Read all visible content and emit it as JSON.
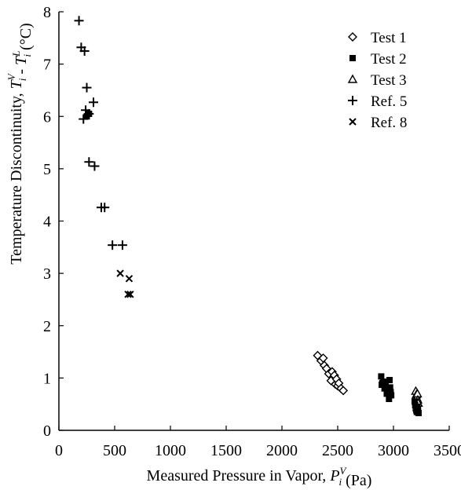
{
  "chart_data": {
    "type": "scatter",
    "xlabel": "Measured Pressure in Vapor, P_i^V (Pa)",
    "ylabel": "Temperature Discontinuity, T_i^V - T_i^L (°C)",
    "xlim": [
      0,
      3500
    ],
    "ylim": [
      0,
      8
    ],
    "xticks": [
      0,
      500,
      1000,
      1500,
      2000,
      2500,
      3000,
      3500
    ],
    "yticks": [
      0,
      1,
      2,
      3,
      4,
      5,
      6,
      7,
      8
    ],
    "grid": false,
    "legend_position": "top-right",
    "series": [
      {
        "name": "Test 1",
        "marker": "diamond-open",
        "points": [
          [
            2320,
            1.43
          ],
          [
            2350,
            1.33
          ],
          [
            2370,
            1.38
          ],
          [
            2380,
            1.24
          ],
          [
            2400,
            1.18
          ],
          [
            2420,
            1.08
          ],
          [
            2440,
            0.95
          ],
          [
            2450,
            1.12
          ],
          [
            2470,
            1.05
          ],
          [
            2480,
            0.88
          ],
          [
            2490,
            0.98
          ],
          [
            2500,
            0.85
          ],
          [
            2510,
            0.9
          ],
          [
            2530,
            0.8
          ],
          [
            2550,
            0.76
          ]
        ]
      },
      {
        "name": "Test 2",
        "marker": "square-filled",
        "points": [
          [
            2890,
            1.03
          ],
          [
            2895,
            0.87
          ],
          [
            2900,
            0.9
          ],
          [
            2910,
            0.93
          ],
          [
            2920,
            0.8
          ],
          [
            2930,
            0.85
          ],
          [
            2940,
            0.7
          ],
          [
            2950,
            0.76
          ],
          [
            2960,
            0.6
          ],
          [
            2965,
            0.96
          ],
          [
            2970,
            0.82
          ],
          [
            2975,
            0.73
          ],
          [
            2980,
            0.67
          ]
        ]
      },
      {
        "name": "Test 3",
        "marker": "triangle-open",
        "points": [
          [
            3200,
            0.75
          ],
          [
            3205,
            0.68
          ],
          [
            3210,
            0.62
          ],
          [
            3215,
            0.7
          ],
          [
            3218,
            0.58
          ],
          [
            3222,
            0.52
          ]
        ]
      },
      {
        "name": "Ref. 5",
        "marker": "plus",
        "points": [
          [
            180,
            7.83
          ],
          [
            200,
            7.32
          ],
          [
            230,
            7.25
          ],
          [
            250,
            6.55
          ],
          [
            240,
            6.12
          ],
          [
            220,
            5.95
          ],
          [
            270,
            6.05
          ],
          [
            310,
            6.27
          ],
          [
            270,
            5.13
          ],
          [
            320,
            5.05
          ],
          [
            380,
            4.26
          ],
          [
            410,
            4.26
          ],
          [
            480,
            3.54
          ],
          [
            570,
            3.54
          ]
        ]
      },
      {
        "name": "Ref. 8",
        "marker": "x",
        "points": [
          [
            550,
            3.0
          ],
          [
            630,
            2.9
          ],
          [
            620,
            2.6
          ],
          [
            640,
            2.6
          ]
        ]
      }
    ],
    "extra_markers": [
      {
        "series": "Test 2",
        "points": [
          [
            3190,
            0.55
          ],
          [
            3195,
            0.48
          ],
          [
            3200,
            0.42
          ],
          [
            3205,
            0.38
          ],
          [
            3210,
            0.35
          ],
          [
            3215,
            0.45
          ],
          [
            3220,
            0.4
          ],
          [
            3225,
            0.33
          ],
          [
            250,
            6.0
          ],
          [
            270,
            6.05
          ]
        ]
      }
    ]
  }
}
